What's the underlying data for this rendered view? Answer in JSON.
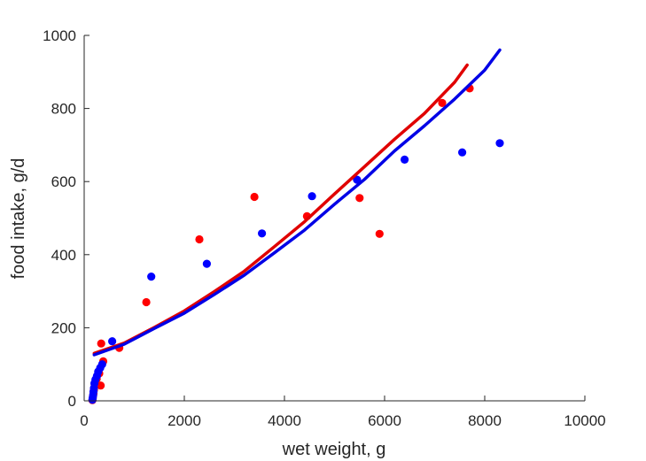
{
  "chart_data": {
    "type": "scatter",
    "title": "",
    "xlabel": "wet weight, g",
    "ylabel": "food intake, g/d",
    "xlim": [
      0,
      10000
    ],
    "ylim": [
      0,
      1000
    ],
    "xticks": [
      0,
      2000,
      4000,
      6000,
      8000,
      10000
    ],
    "xtick_labels": [
      "0",
      "2000",
      "4000",
      "6000",
      "8000",
      "10000"
    ],
    "yticks": [
      0,
      200,
      400,
      600,
      800,
      1000
    ],
    "ytick_labels": [
      "0",
      "200",
      "400",
      "600",
      "800",
      "1000"
    ],
    "grid": false,
    "series": [
      {
        "kind": "scatter",
        "color": "#ff0000",
        "points": [
          [
            165,
            2
          ],
          [
            170,
            6
          ],
          [
            175,
            12
          ],
          [
            185,
            20
          ],
          [
            195,
            30
          ],
          [
            210,
            45
          ],
          [
            250,
            60
          ],
          [
            300,
            75
          ],
          [
            330,
            42
          ],
          [
            380,
            108
          ],
          [
            340,
            157
          ],
          [
            700,
            145
          ],
          [
            1240,
            270
          ],
          [
            2300,
            442
          ],
          [
            3400,
            558
          ],
          [
            4450,
            505
          ],
          [
            5500,
            555
          ],
          [
            5900,
            457
          ],
          [
            7150,
            815
          ],
          [
            7700,
            855
          ]
        ]
      },
      {
        "kind": "scatter",
        "color": "#0000ff",
        "points": [
          [
            165,
            3
          ],
          [
            170,
            8
          ],
          [
            178,
            15
          ],
          [
            185,
            25
          ],
          [
            195,
            35
          ],
          [
            205,
            48
          ],
          [
            225,
            58
          ],
          [
            255,
            68
          ],
          [
            280,
            80
          ],
          [
            320,
            90
          ],
          [
            360,
            100
          ],
          [
            560,
            163
          ],
          [
            1340,
            340
          ],
          [
            2450,
            375
          ],
          [
            3550,
            458
          ],
          [
            4550,
            560
          ],
          [
            5450,
            605
          ],
          [
            6400,
            660
          ],
          [
            7550,
            680
          ],
          [
            8300,
            705
          ]
        ]
      },
      {
        "kind": "line",
        "color": "#e00000",
        "x": [
          200,
          800,
          1400,
          2000,
          2600,
          3200,
          3800,
          4400,
          5000,
          5600,
          6200,
          6800,
          7400,
          7650
        ],
        "y": [
          130,
          158,
          201,
          246,
          299,
          355,
          422,
          490,
          566,
          641,
          716,
          787,
          872,
          919
        ]
      },
      {
        "kind": "line",
        "color": "#0000e6",
        "x": [
          200,
          800,
          1400,
          2000,
          2600,
          3200,
          3800,
          4400,
          5000,
          5600,
          6200,
          6800,
          7400,
          8000,
          8300
        ],
        "y": [
          126,
          155,
          198,
          240,
          291,
          344,
          405,
          467,
          538,
          606,
          684,
          753,
          826,
          905,
          960
        ]
      }
    ]
  }
}
